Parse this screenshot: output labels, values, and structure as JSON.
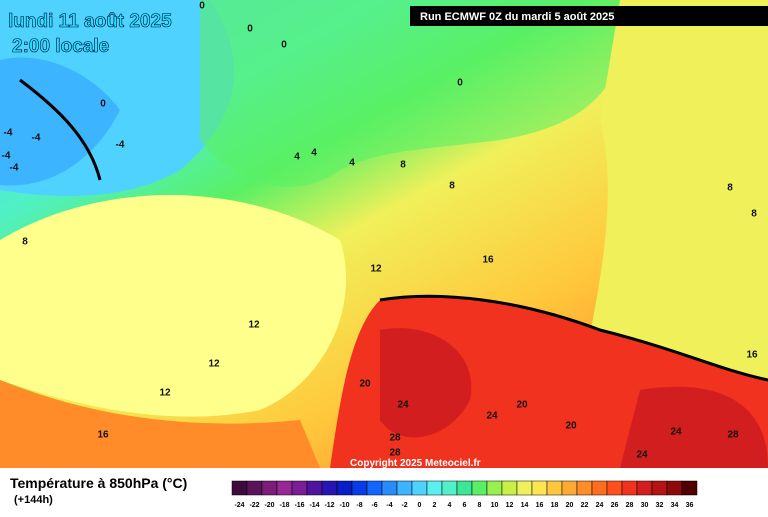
{
  "header": {
    "date": "lundi 11 août 2025",
    "time": "2:00 locale",
    "run": "Run ECMWF 0Z du mardi 5 août 2025"
  },
  "footer": {
    "title": "Température à 850hPa (°C)",
    "lead": "(+144h)",
    "copyright": "Copyright 2025 Meteociel.fr"
  },
  "legend": {
    "labels": [
      -24,
      -22,
      -20,
      -18,
      -16,
      -14,
      -12,
      -10,
      -8,
      -6,
      -4,
      -2,
      0,
      2,
      4,
      6,
      8,
      10,
      12,
      14,
      16,
      18,
      20,
      22,
      24,
      26,
      28,
      30,
      32,
      34,
      36
    ],
    "colors": [
      "#3c0a3c",
      "#5a145a",
      "#7a1e7a",
      "#962896",
      "#7a1e96",
      "#5014a0",
      "#2814b4",
      "#0a1ec8",
      "#0a3ce6",
      "#1464ff",
      "#288cff",
      "#3cb4ff",
      "#50d2ff",
      "#5af0f0",
      "#50f0c8",
      "#3ce696",
      "#5af064",
      "#96f050",
      "#c8f046",
      "#f0f05a",
      "#ffe650",
      "#ffc83c",
      "#ffaa32",
      "#ff8c28",
      "#ff6e1e",
      "#ff501e",
      "#f0321e",
      "#d21e1e",
      "#b41414",
      "#8c0a0a",
      "#500000"
    ]
  },
  "contour_labels": [
    "0",
    "0",
    "0",
    "0",
    "0",
    "-4",
    "-4",
    "-4",
    "-4",
    "4",
    "4",
    "4",
    "8",
    "8",
    "8",
    "8",
    "8",
    "12",
    "12",
    "12",
    "12",
    "16",
    "16",
    "16",
    "20",
    "20",
    "20",
    "24",
    "24",
    "24",
    "24",
    "28",
    "28",
    "28",
    "-4"
  ]
}
